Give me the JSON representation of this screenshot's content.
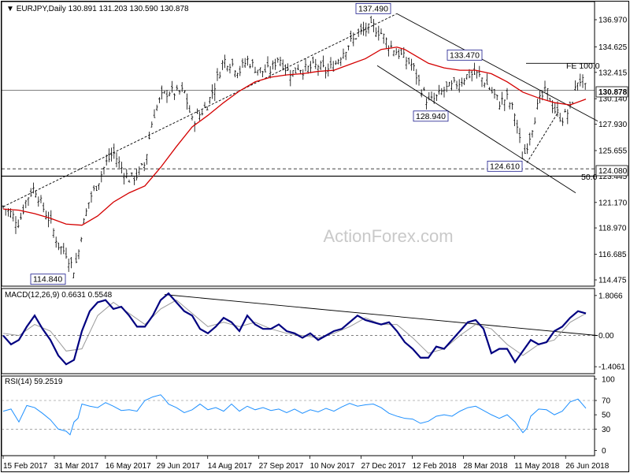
{
  "chart_data": {
    "type": "candlestick",
    "title": "EURJPY,Daily",
    "ohlc": {
      "open": 130.891,
      "high": 131.203,
      "low": 130.59,
      "close": 130.878
    },
    "ohlc_text": "130.891 131.203 130.590 130.878",
    "watermark": "ActionForex.com",
    "x_tick_labels": [
      "15 Feb 2017",
      "31 Mar 2017",
      "16 May 2017",
      "29 Jun 2017",
      "14 Aug 2017",
      "27 Sep 2017",
      "10 Nov 2017",
      "27 Dec 2017",
      "12 Feb 2018",
      "28 Mar 2018",
      "11 May 2018",
      "26 Jun 2018"
    ],
    "price_ticks": [
      "136.970",
      "134.625",
      "132.415",
      "130.140",
      "127.930",
      "125.655",
      "123.445",
      "121.170",
      "118.970",
      "116.685",
      "114.475"
    ],
    "ylim": [
      114.0,
      138.4
    ],
    "current_price_label": "130.878",
    "level_label": "124.080",
    "price_series": {
      "name": "EURJPY close",
      "x": [
        0,
        10,
        20,
        30,
        40,
        50,
        60,
        70,
        80,
        90,
        95,
        100,
        110,
        120,
        130,
        140,
        150,
        160,
        170,
        180,
        190,
        200,
        210,
        220,
        230,
        240,
        250,
        260,
        270,
        280,
        290,
        300,
        310,
        320,
        330,
        340,
        350,
        360,
        370,
        375,
        380,
        390,
        400,
        410,
        420,
        430,
        440,
        445,
        450,
        460,
        470,
        480,
        490,
        500,
        510,
        520,
        530,
        540,
        550,
        560,
        570,
        580,
        590,
        600,
        610,
        620,
        630,
        640,
        650,
        660,
        670,
        680,
        690,
        700,
        710,
        720,
        730,
        735,
        740
      ],
      "y": [
        120.8,
        120.2,
        119.4,
        121.5,
        122.5,
        120.8,
        119.5,
        117.5,
        116.8,
        115.3,
        116.5,
        118.8,
        121.5,
        122.8,
        124.5,
        125.5,
        124.2,
        123.2,
        123.5,
        124.5,
        128.5,
        130.2,
        130.8,
        130.6,
        130.8,
        128.2,
        128.8,
        129.7,
        131.5,
        133.5,
        133.2,
        132.5,
        133.5,
        132.8,
        132.5,
        132.6,
        133.8,
        132.6,
        132.4,
        133.0,
        132.6,
        132.8,
        133.0,
        132.5,
        133.0,
        134.0,
        135.0,
        135.2,
        135.8,
        136.0,
        136.4,
        135.8,
        134.8,
        134.2,
        133.6,
        133.0,
        131.2,
        129.8,
        130.2,
        130.9,
        131.2,
        131.6,
        132.2,
        132.3,
        131.8,
        130.8,
        129.8,
        130.2,
        128.8,
        124.9,
        127.2,
        129.8,
        130.9,
        129.2,
        128.4,
        129.2,
        131.8,
        131.7,
        130.9
      ]
    },
    "series": [
      {
        "name": "",
        "color": "#d40000",
        "x": [
          0,
          20,
          40,
          60,
          80,
          100,
          120,
          140,
          160,
          180,
          200,
          220,
          240,
          260,
          280,
          300,
          320,
          340,
          360,
          380,
          400,
          420,
          440,
          460,
          480,
          500,
          510,
          520,
          530,
          540,
          560,
          580,
          600,
          620,
          640,
          660,
          680,
          700,
          720,
          740
        ],
        "y": [
          120.6,
          120.5,
          120.2,
          119.8,
          119.3,
          119.2,
          120.0,
          121.2,
          122.0,
          122.6,
          124.2,
          126.0,
          127.7,
          128.7,
          129.8,
          130.8,
          131.6,
          132.0,
          132.2,
          132.3,
          132.5,
          132.6,
          133.1,
          133.6,
          134.4,
          134.6,
          134.4,
          134.0,
          133.6,
          133.2,
          132.8,
          132.6,
          132.6,
          132.3,
          131.6,
          130.7,
          130.2,
          129.8,
          129.6,
          130.1
        ]
      }
    ],
    "annotations": [
      {
        "text": "137.490",
        "x": 470,
        "y": 137.49
      },
      {
        "text": "133.470",
        "x": 586,
        "y": 133.47
      },
      {
        "text": "128.940",
        "x": 543,
        "y": 128.94
      },
      {
        "text": "124.610",
        "x": 637,
        "y": 124.61
      },
      {
        "text": "114.840",
        "x": 57,
        "y": 114.84
      }
    ],
    "fib_labels": {
      "fe": "FE 100.0",
      "half": "50.0"
    },
    "fe_level": 133.2,
    "horizontal_levels": [
      130.878,
      124.08,
      123.445
    ],
    "trendlines": [
      {
        "x1": 0,
        "y1": 120.8,
        "x2": 500,
        "y2": 137.49,
        "style": "dashed"
      },
      {
        "x1": 500,
        "y1": 137.49,
        "x2": 755,
        "y2": 128.2,
        "style": "solid"
      },
      {
        "x1": 475,
        "y1": 133.0,
        "x2": 727,
        "y2": 122.0,
        "style": "solid"
      },
      {
        "x1": 665,
        "y1": 124.6,
        "x2": 705,
        "y2": 129.0,
        "style": "dashed"
      }
    ],
    "macd": {
      "label": "MACD(12,26,9) 0.6631 0.5548",
      "ticks": [
        "1.8066",
        "0.00",
        "-1.4061"
      ],
      "ylim": [
        -1.65,
        2.05
      ],
      "zero": 0,
      "macd_line": {
        "x": [
          0,
          10,
          20,
          30,
          40,
          50,
          60,
          70,
          80,
          90,
          100,
          110,
          120,
          130,
          140,
          150,
          160,
          170,
          180,
          190,
          200,
          210,
          220,
          230,
          240,
          250,
          260,
          270,
          280,
          290,
          300,
          310,
          320,
          330,
          340,
          350,
          360,
          370,
          380,
          390,
          400,
          410,
          420,
          430,
          440,
          450,
          460,
          470,
          480,
          490,
          500,
          510,
          520,
          530,
          540,
          550,
          560,
          570,
          580,
          590,
          600,
          610,
          620,
          630,
          640,
          650,
          660,
          670,
          680,
          690,
          700,
          710,
          720,
          730,
          740
        ],
        "y": [
          0.0,
          -0.4,
          -0.2,
          0.4,
          0.9,
          0.3,
          -0.2,
          -0.9,
          -1.3,
          -1.1,
          0.2,
          1.1,
          1.5,
          1.6,
          1.2,
          1.3,
          0.9,
          0.4,
          0.4,
          0.9,
          1.6,
          1.9,
          1.5,
          1.1,
          0.9,
          0.3,
          0.1,
          0.4,
          0.8,
          0.6,
          0.2,
          0.9,
          0.5,
          0.3,
          0.3,
          0.5,
          0.2,
          0.1,
          -0.1,
          0.1,
          -0.2,
          0.0,
          0.2,
          0.3,
          0.6,
          0.9,
          0.7,
          0.6,
          0.5,
          0.6,
          0.2,
          -0.3,
          -0.6,
          -1.0,
          -1.0,
          -0.5,
          -0.6,
          -0.2,
          0.2,
          0.6,
          0.7,
          0.3,
          -0.8,
          -0.6,
          -0.6,
          -1.2,
          -0.7,
          -0.2,
          -0.4,
          -0.3,
          0.2,
          0.4,
          0.8,
          1.1,
          1.0
        ]
      },
      "signal_line": {
        "x": [
          0,
          20,
          40,
          60,
          80,
          100,
          120,
          140,
          160,
          180,
          200,
          220,
          240,
          260,
          280,
          300,
          320,
          340,
          360,
          380,
          400,
          420,
          440,
          460,
          480,
          500,
          520,
          540,
          560,
          580,
          600,
          620,
          640,
          660,
          680,
          700,
          720,
          740
        ],
        "y": [
          0.1,
          0.0,
          0.5,
          0.2,
          -0.7,
          -0.6,
          0.9,
          1.5,
          1.0,
          0.5,
          1.2,
          1.6,
          1.0,
          0.4,
          0.6,
          0.4,
          0.6,
          0.3,
          0.1,
          0.0,
          -0.1,
          0.1,
          0.4,
          0.8,
          0.5,
          0.5,
          -0.1,
          -0.8,
          -0.6,
          0.0,
          0.5,
          0.3,
          -0.4,
          -0.9,
          -0.4,
          -0.2,
          0.6,
          1.0
        ]
      },
      "trendline": {
        "x1": 205,
        "y1": 1.85,
        "x2": 755,
        "y2": 0.0
      }
    },
    "rsi": {
      "label": "RSI(14) 59.2519",
      "ticks": [
        "100",
        "70",
        "50",
        "30",
        "0"
      ],
      "ylim": [
        -5,
        102
      ],
      "levels": [
        70,
        30
      ],
      "x": [
        0,
        10,
        20,
        30,
        40,
        50,
        60,
        70,
        80,
        85,
        90,
        95,
        100,
        110,
        120,
        130,
        140,
        150,
        160,
        170,
        180,
        190,
        200,
        205,
        210,
        220,
        230,
        240,
        250,
        260,
        270,
        280,
        290,
        300,
        310,
        320,
        330,
        340,
        350,
        360,
        370,
        380,
        390,
        400,
        410,
        420,
        430,
        440,
        450,
        460,
        470,
        480,
        490,
        500,
        510,
        520,
        530,
        540,
        550,
        560,
        570,
        580,
        590,
        600,
        610,
        620,
        630,
        640,
        650,
        660,
        665,
        670,
        680,
        690,
        700,
        710,
        720,
        730,
        740
      ],
      "y": [
        55,
        58,
        40,
        63,
        60,
        52,
        43,
        30,
        27,
        22,
        40,
        45,
        65,
        62,
        60,
        67,
        62,
        56,
        57,
        55,
        70,
        75,
        78,
        72,
        65,
        60,
        53,
        57,
        65,
        57,
        60,
        55,
        65,
        55,
        62,
        57,
        60,
        56,
        58,
        53,
        58,
        52,
        57,
        54,
        59,
        55,
        61,
        66,
        62,
        64,
        65,
        60,
        52,
        48,
        45,
        44,
        38,
        41,
        48,
        50,
        48,
        55,
        60,
        62,
        56,
        50,
        45,
        50,
        40,
        25,
        31,
        48,
        58,
        57,
        50,
        55,
        68,
        72,
        59
      ]
    }
  }
}
